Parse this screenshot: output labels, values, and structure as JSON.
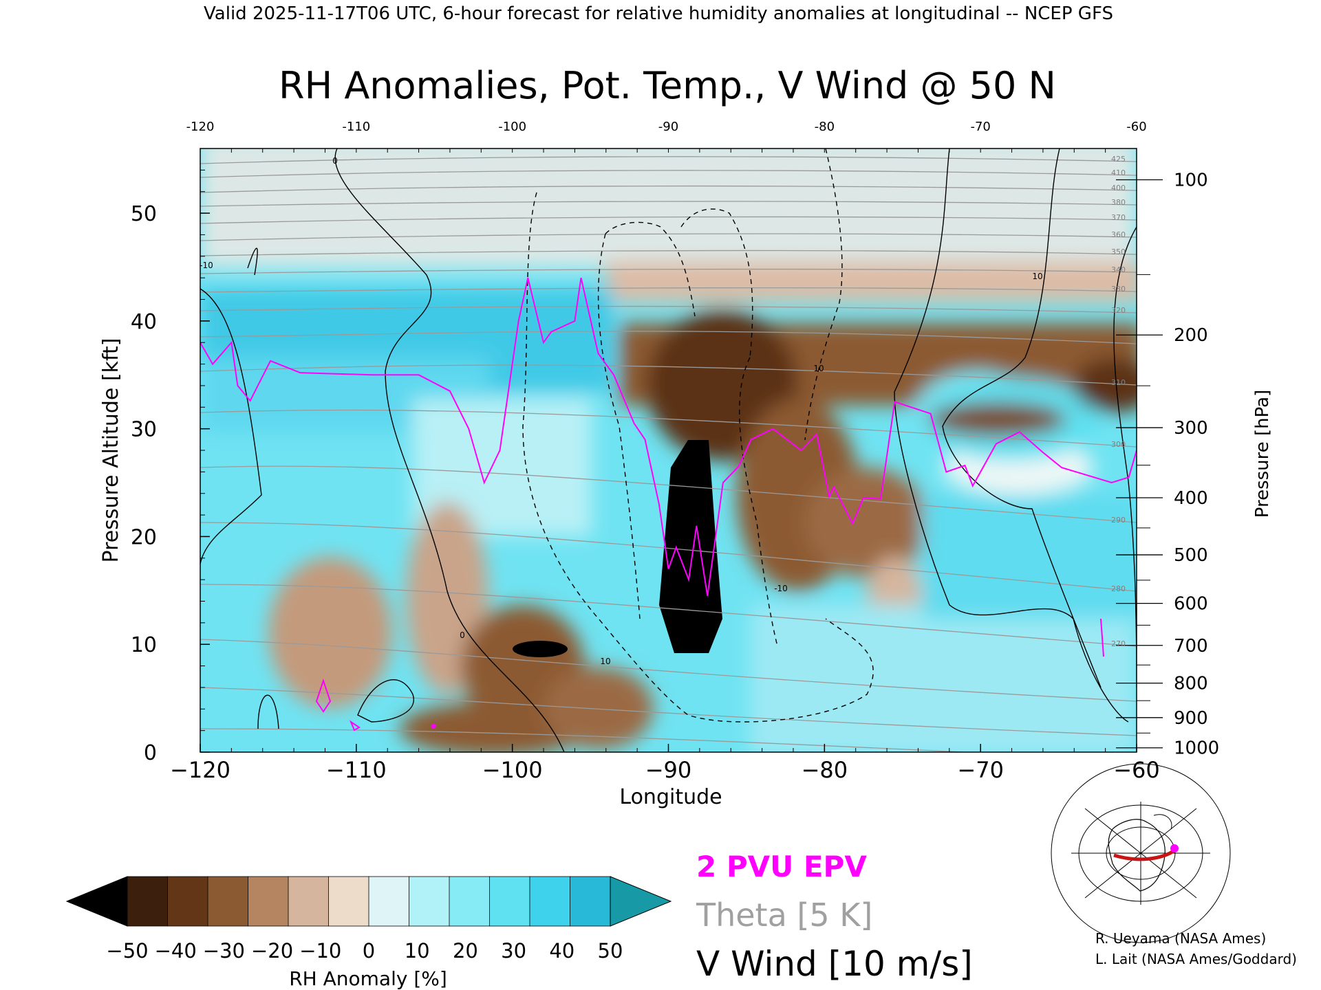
{
  "header": "Valid 2025-11-17T06 UTC, 6-hour forecast for relative humidity anomalies at longitudinal -- NCEP GFS",
  "chart_data": {
    "type": "heatmap",
    "title": "RH Anomalies, Pot. Temp., V Wind @ 50 N",
    "xlabel": "Longitude",
    "ylabel": "Pressure Altitude [kft]",
    "y2label": "Pressure [hPa]",
    "xlim": [
      -120,
      -60
    ],
    "ylim": [
      0,
      56
    ],
    "x_ticks": [
      "−120",
      "−110",
      "−100",
      "−90",
      "−80",
      "−70",
      "−60"
    ],
    "x_tick_values": [
      -120,
      -110,
      -100,
      -90,
      -80,
      -70,
      -60
    ],
    "top_ticks": [
      "-120",
      "-110",
      "-100",
      "-90",
      "-80",
      "-70",
      "-60"
    ],
    "y_ticks": [
      "0",
      "10",
      "20",
      "30",
      "40",
      "50"
    ],
    "y_tick_values": [
      0,
      10,
      20,
      30,
      40,
      50
    ],
    "pressure_ticks": [
      {
        "label": "100",
        "kft": 53.1
      },
      {
        "label": "200",
        "kft": 38.7
      },
      {
        "label": "300",
        "kft": 30.1
      },
      {
        "label": "400",
        "kft": 23.6
      },
      {
        "label": "500",
        "kft": 18.3
      },
      {
        "label": "600",
        "kft": 13.8
      },
      {
        "label": "700",
        "kft": 9.9
      },
      {
        "label": "800",
        "kft": 6.4
      },
      {
        "label": "900",
        "kft": 3.2
      },
      {
        "label": "1000",
        "kft": 0.4
      }
    ],
    "colorbar": {
      "label": "RH Anomaly [%]",
      "tick_labels": [
        "−50",
        "−40",
        "−30",
        "−20",
        "−10",
        "0",
        "10",
        "20",
        "30",
        "40",
        "50"
      ],
      "colors": [
        "#000000",
        "#3d1f0d",
        "#643618",
        "#8c5a32",
        "#b58562",
        "#d6b59e",
        "#eedccb",
        "#dff4f6",
        "#b0f2f7",
        "#86ebf5",
        "#5fe1f1",
        "#3fd2ec",
        "#28b9d8",
        "#179aa6"
      ]
    },
    "legend": [
      {
        "label": "2 PVU EPV",
        "color": "#ff00ff"
      },
      {
        "label": "Theta [5 K]",
        "color": "#a0a0a0"
      },
      {
        "label": "V Wind [10 m/s]",
        "color": "#000000"
      }
    ],
    "theta_labels": [
      "425",
      "410",
      "400",
      "380",
      "370",
      "360",
      "350",
      "340",
      "330",
      "320",
      "310",
      "300",
      "290",
      "280",
      "270"
    ],
    "wind_labels": [
      "0",
      "-10",
      "10"
    ],
    "epv_line": [
      [
        -120,
        38
      ],
      [
        -119.2,
        36
      ],
      [
        -118,
        38
      ],
      [
        -117.6,
        34
      ],
      [
        -116.8,
        32.6
      ],
      [
        -115.5,
        36.3
      ],
      [
        -113.6,
        35.2
      ],
      [
        -109,
        35
      ],
      [
        -106,
        35
      ],
      [
        -104,
        33.5
      ],
      [
        -102.8,
        30
      ],
      [
        -101.8,
        25
      ],
      [
        -100.8,
        28
      ],
      [
        -99.6,
        40
      ],
      [
        -99,
        44
      ],
      [
        -98,
        38
      ],
      [
        -97.5,
        39
      ],
      [
        -96,
        40
      ],
      [
        -95.6,
        44
      ],
      [
        -94.5,
        37
      ],
      [
        -93.5,
        35
      ],
      [
        -92.2,
        30.5
      ],
      [
        -91.5,
        29
      ],
      [
        -90.6,
        23
      ],
      [
        -90,
        17
      ],
      [
        -89.5,
        19
      ],
      [
        -88.7,
        16
      ],
      [
        -88.2,
        21
      ],
      [
        -87.5,
        14.5
      ],
      [
        -86.5,
        25
      ],
      [
        -85.5,
        26.5
      ],
      [
        -84.7,
        29
      ],
      [
        -83.3,
        30
      ],
      [
        -81.5,
        28
      ],
      [
        -80.5,
        29.5
      ],
      [
        -79.7,
        23.7
      ],
      [
        -79.4,
        24.6
      ],
      [
        -78.2,
        21.2
      ],
      [
        -77.5,
        23.6
      ],
      [
        -76.4,
        23.5
      ],
      [
        -75.5,
        32.5
      ],
      [
        -73.2,
        31.4
      ],
      [
        -72.2,
        26
      ],
      [
        -71,
        26.6
      ],
      [
        -70.5,
        24.7
      ],
      [
        -69,
        28.6
      ],
      [
        -67.5,
        29.7
      ],
      [
        -66,
        27.8
      ],
      [
        -64.8,
        26.4
      ],
      [
        -61.6,
        25
      ],
      [
        -60.5,
        25.5
      ],
      [
        -60,
        28
      ]
    ],
    "annotations": [
      "R. Ueyama (NASA Ames)",
      "L. Lait (NASA Ames/Goddard)"
    ]
  }
}
